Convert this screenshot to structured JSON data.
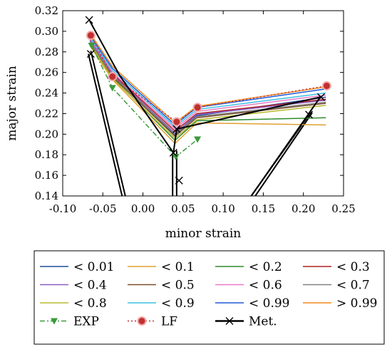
{
  "chart_data": {
    "type": "line",
    "title": "",
    "xlabel": "minor strain",
    "ylabel": "major strain",
    "xlim": [
      -0.1,
      0.25
    ],
    "ylim": [
      0.14,
      0.32
    ],
    "xticks": [
      "-0.10",
      "-0.05",
      "0.00",
      "0.05",
      "0.10",
      "0.15",
      "0.20",
      "0.25"
    ],
    "yticks": [
      "0.14",
      "0.16",
      "0.18",
      "0.20",
      "0.22",
      "0.24",
      "0.26",
      "0.28",
      "0.30",
      "0.32"
    ],
    "grid": false,
    "legend_position": "below",
    "series": [
      {
        "name": "< 0.01",
        "color": "#1f4e9c",
        "style": "solid",
        "x": [
          -0.066,
          -0.038,
          0.04,
          0.067,
          0.228
        ],
        "y": [
          0.29,
          0.258,
          0.199,
          0.218,
          0.236
        ]
      },
      {
        "name": "< 0.1",
        "color": "#e0a030",
        "style": "solid",
        "x": [
          -0.066,
          -0.038,
          0.04,
          0.067,
          0.228
        ],
        "y": [
          0.286,
          0.253,
          0.191,
          0.211,
          0.209
        ]
      },
      {
        "name": "< 0.2",
        "color": "#2e8b2e",
        "style": "solid",
        "x": [
          -0.066,
          -0.038,
          0.04,
          0.067,
          0.228
        ],
        "y": [
          0.287,
          0.255,
          0.194,
          0.213,
          0.216
        ]
      },
      {
        "name": "< 0.3",
        "color": "#b02020",
        "style": "solid",
        "x": [
          -0.066,
          -0.038,
          0.04,
          0.067,
          0.228
        ],
        "y": [
          0.292,
          0.259,
          0.203,
          0.22,
          0.234
        ]
      },
      {
        "name": "< 0.4",
        "color": "#8e5cc0",
        "style": "solid",
        "x": [
          -0.066,
          -0.038,
          0.04,
          0.067,
          0.228
        ],
        "y": [
          0.291,
          0.258,
          0.201,
          0.219,
          0.233
        ]
      },
      {
        "name": "< 0.5",
        "color": "#7a4e2a",
        "style": "solid",
        "x": [
          -0.066,
          -0.038,
          0.04,
          0.067,
          0.228
        ],
        "y": [
          0.289,
          0.256,
          0.198,
          0.216,
          0.23
        ]
      },
      {
        "name": "< 0.6",
        "color": "#e879c8",
        "style": "solid",
        "x": [
          -0.066,
          -0.038,
          0.04,
          0.067,
          0.228
        ],
        "y": [
          0.293,
          0.26,
          0.205,
          0.222,
          0.238
        ]
      },
      {
        "name": "< 0.7",
        "color": "#808080",
        "style": "solid",
        "x": [
          -0.066,
          -0.038,
          0.04,
          0.067,
          0.228
        ],
        "y": [
          0.29,
          0.257,
          0.2,
          0.217,
          0.231
        ]
      },
      {
        "name": "< 0.8",
        "color": "#b8b830",
        "style": "solid",
        "x": [
          -0.066,
          -0.038,
          0.04,
          0.067,
          0.228
        ],
        "y": [
          0.288,
          0.254,
          0.196,
          0.214,
          0.228
        ]
      },
      {
        "name": "< 0.9",
        "color": "#3cc0e0",
        "style": "solid",
        "x": [
          -0.066,
          -0.038,
          0.04,
          0.067,
          0.228
        ],
        "y": [
          0.294,
          0.262,
          0.207,
          0.224,
          0.24
        ]
      },
      {
        "name": "< 0.99",
        "color": "#1f5ad8",
        "style": "solid",
        "x": [
          -0.066,
          -0.038,
          0.04,
          0.067,
          0.228
        ],
        "y": [
          0.296,
          0.264,
          0.209,
          0.226,
          0.244
        ]
      },
      {
        "name": "> 0.99",
        "color": "#f08a1a",
        "style": "solid",
        "x": [
          -0.066,
          -0.038,
          0.04,
          0.067,
          0.228
        ],
        "y": [
          0.298,
          0.266,
          0.211,
          0.227,
          0.246
        ]
      },
      {
        "name": "EXP",
        "color": "#3a9a3a",
        "style": "dashdot",
        "marker": "triangle-down",
        "x": [
          -0.064,
          -0.038,
          0.041,
          0.068
        ],
        "y": [
          0.286,
          0.245,
          0.178,
          0.195
        ]
      },
      {
        "name": "LF",
        "color": "#c03030",
        "style": "dotted",
        "marker": "circle",
        "x": [
          -0.065,
          -0.038,
          0.042,
          0.068,
          0.229
        ],
        "y": [
          0.296,
          0.256,
          0.212,
          0.226,
          0.247
        ]
      },
      {
        "name": "Met.",
        "color": "#000000",
        "style": "solid",
        "marker": "x",
        "x": [
          -0.067,
          -0.029,
          0.038,
          0.042,
          0.221,
          0.135
        ],
        "y": [
          0.311,
          0.257,
          0.182,
          0.205,
          0.236,
          0.14
        ]
      }
    ],
    "met_extra_segments": [
      {
        "x": [
          -0.068,
          -0.026
        ],
        "y": [
          0.278,
          0.14
        ]
      },
      {
        "x": [
          -0.065,
          -0.022
        ],
        "y": [
          0.281,
          0.14
        ]
      },
      {
        "x": [
          0.037,
          0.037
        ],
        "y": [
          0.182,
          0.14
        ]
      },
      {
        "x": [
          0.042,
          0.042
        ],
        "y": [
          0.184,
          0.14
        ]
      },
      {
        "x": [
          0.207,
          0.135
        ],
        "y": [
          0.219,
          0.14
        ]
      },
      {
        "x": [
          0.211,
          0.14
        ],
        "y": [
          0.221,
          0.14
        ]
      }
    ],
    "met_x_markers": {
      "x": [
        -0.067,
        -0.065,
        0.038,
        0.042,
        0.045,
        0.207,
        0.222
      ],
      "y": [
        0.311,
        0.278,
        0.182,
        0.205,
        0.155,
        0.219,
        0.236
      ]
    }
  }
}
